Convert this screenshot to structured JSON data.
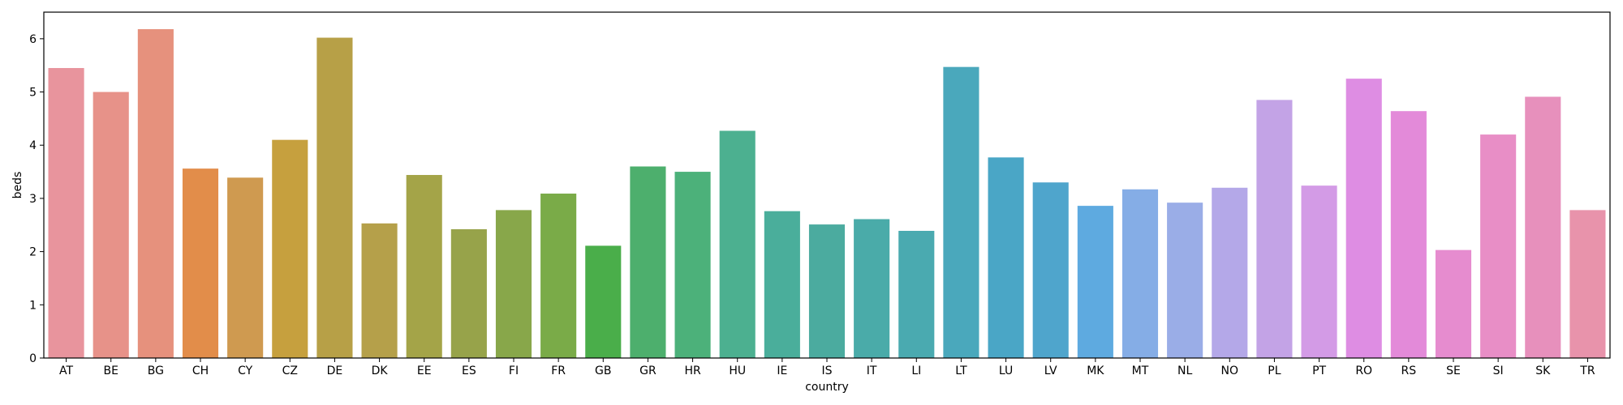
{
  "chart_data": {
    "type": "bar",
    "xlabel": "country",
    "ylabel": "beds",
    "ylim": [
      0,
      6.5
    ],
    "yticks": [
      0,
      1,
      2,
      3,
      4,
      5,
      6
    ],
    "grid": false,
    "categories": [
      "AT",
      "BE",
      "BG",
      "CH",
      "CY",
      "CZ",
      "DE",
      "DK",
      "EE",
      "ES",
      "FI",
      "FR",
      "GB",
      "GR",
      "HR",
      "HU",
      "IE",
      "IS",
      "IT",
      "LI",
      "LT",
      "LU",
      "LV",
      "MK",
      "MT",
      "NL",
      "NO",
      "PL",
      "PT",
      "RO",
      "RS",
      "SE",
      "SI",
      "SK",
      "TR"
    ],
    "values": [
      5.45,
      5.0,
      6.18,
      3.56,
      3.39,
      4.1,
      6.02,
      2.53,
      3.44,
      2.42,
      2.78,
      3.09,
      2.11,
      3.6,
      3.5,
      4.27,
      2.76,
      2.51,
      2.61,
      2.39,
      5.47,
      3.77,
      3.3,
      2.86,
      3.17,
      2.92,
      3.2,
      4.85,
      3.24,
      5.25,
      4.64,
      2.03,
      4.2,
      4.91,
      2.78
    ],
    "colors": [
      "#e8949d",
      "#e79289",
      "#e6917d",
      "#e28d4a",
      "#cf9a50",
      "#c6a03e",
      "#b7a047",
      "#b5a04a",
      "#a4a448",
      "#97a34a",
      "#88a74a",
      "#7aab48",
      "#4aae4a",
      "#4daf6d",
      "#4cb17a",
      "#4cb090",
      "#4aae9b",
      "#4bab9f",
      "#4aaba9",
      "#4aaab0",
      "#4aa8bc",
      "#4aa6c6",
      "#4fa5cc",
      "#5eaae0",
      "#85ade6",
      "#9aade7",
      "#b4a8e8",
      "#c3a3e6",
      "#d39be6",
      "#de8de3",
      "#e38ad9",
      "#e68ccf",
      "#e88ec6",
      "#e790bc",
      "#e893ab"
    ]
  }
}
